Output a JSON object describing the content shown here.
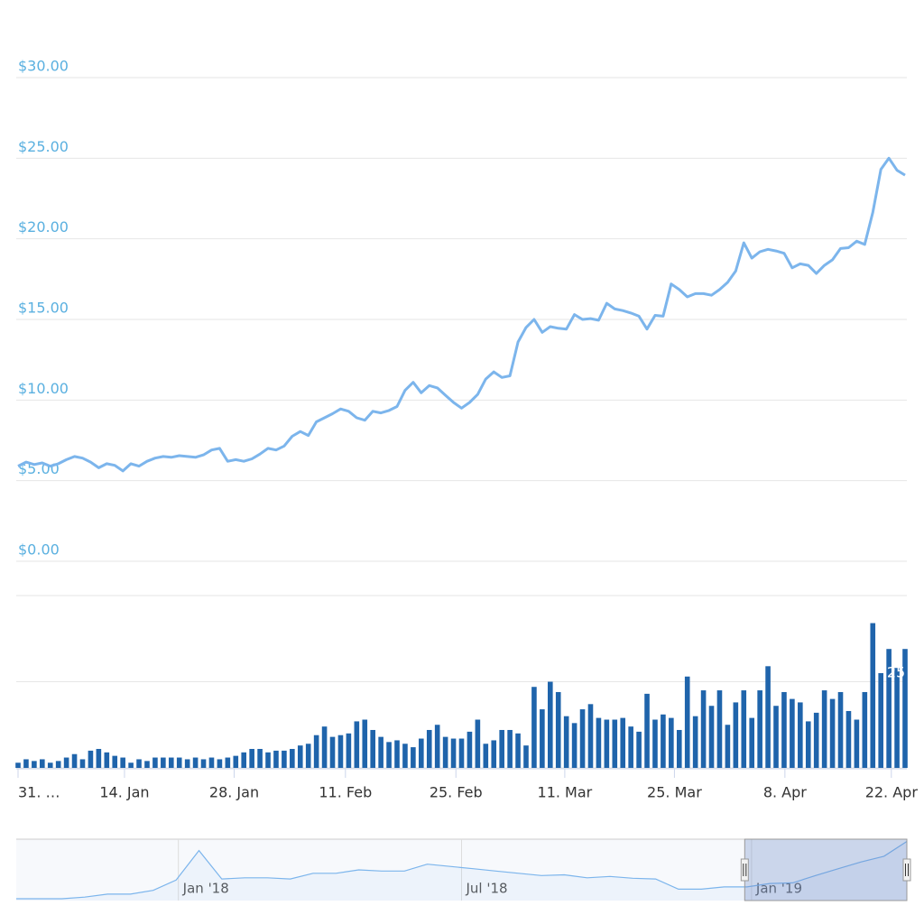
{
  "chart_data": {
    "type": "line",
    "series": [
      {
        "name": "Price",
        "color": "#7cb5ec",
        "values": [
          5.9,
          6.15,
          6.0,
          6.1,
          5.9,
          6.05,
          6.3,
          6.5,
          6.4,
          6.15,
          5.8,
          6.05,
          5.95,
          5.6,
          6.05,
          5.9,
          6.2,
          6.4,
          6.5,
          6.45,
          6.55,
          6.5,
          6.45,
          6.6,
          6.9,
          7.0,
          6.2,
          6.3,
          6.2,
          6.35,
          6.65,
          7.0,
          6.9,
          7.15,
          7.75,
          8.05,
          7.8,
          8.65,
          8.9,
          9.15,
          9.45,
          9.3,
          8.9,
          8.75,
          9.3,
          9.2,
          9.35,
          9.6,
          10.6,
          11.1,
          10.45,
          10.9,
          10.75,
          10.3,
          9.85,
          9.5,
          9.85,
          10.35,
          11.3,
          11.75,
          11.4,
          11.5,
          13.6,
          14.5,
          15.0,
          14.2,
          14.55,
          14.45,
          14.4,
          15.3,
          15.0,
          15.05,
          14.95,
          16.0,
          15.65,
          15.55,
          15.4,
          15.2,
          14.4,
          15.25,
          15.2,
          17.2,
          16.85,
          16.4,
          16.6,
          16.6,
          16.5,
          16.85,
          17.3,
          18.0,
          19.75,
          18.8,
          19.2,
          19.35,
          19.25,
          19.1,
          18.2,
          18.45,
          18.35,
          17.85,
          18.35,
          18.7,
          19.4,
          19.45,
          19.85,
          19.65,
          21.65,
          24.3,
          25.0,
          24.25,
          23.95
        ]
      }
    ],
    "ylim": [
      0,
      30
    ],
    "yticks": [
      {
        "value": 0,
        "label": "$0.00"
      },
      {
        "value": 5,
        "label": "$5.00"
      },
      {
        "value": 10,
        "label": "$10.00"
      },
      {
        "value": 15,
        "label": "$15.00"
      },
      {
        "value": 20,
        "label": "$20.00"
      },
      {
        "value": 25,
        "label": "$25.00"
      },
      {
        "value": 30,
        "label": "$30.00"
      }
    ],
    "grid": true,
    "volume": {
      "type": "bar",
      "color": "#1f64ab",
      "ylim": [
        0,
        100
      ],
      "yticks": [
        0,
        50,
        100
      ],
      "values": [
        3,
        5,
        4,
        5,
        3,
        4,
        6,
        8,
        5,
        10,
        11,
        9,
        7,
        6,
        3,
        5,
        4,
        6,
        6,
        6,
        6,
        5,
        6,
        5,
        6,
        5,
        6,
        7,
        9,
        11,
        11,
        9,
        10,
        10,
        11,
        13,
        14,
        19,
        24,
        18,
        19,
        20,
        27,
        28,
        22,
        18,
        15,
        16,
        14,
        12,
        17,
        22,
        25,
        18,
        17,
        17,
        21,
        28,
        14,
        16,
        22,
        22,
        20,
        13,
        47,
        34,
        50,
        44,
        30,
        26,
        34,
        37,
        29,
        28,
        28,
        29,
        24,
        21,
        43,
        28,
        31,
        29,
        22,
        53,
        30,
        45,
        36,
        45,
        25,
        38,
        45,
        29,
        45,
        59,
        36,
        44,
        40,
        38,
        27,
        32,
        45,
        40,
        44,
        33,
        28,
        44,
        84,
        55,
        69,
        58,
        69
      ]
    },
    "annotation": "25",
    "xlim": [
      0,
      110
    ],
    "xticks": [
      {
        "value": 0,
        "label": "31. …"
      },
      {
        "value": 13.2,
        "label": "14. Jan"
      },
      {
        "value": 26.8,
        "label": "28. Jan"
      },
      {
        "value": 40.6,
        "label": "11. Feb"
      },
      {
        "value": 54.3,
        "label": "25. Feb"
      },
      {
        "value": 67.8,
        "label": "11. Mar"
      },
      {
        "value": 81.4,
        "label": "25. Mar"
      },
      {
        "value": 95.1,
        "label": "8. Apr"
      },
      {
        "value": 108.3,
        "label": "22. Apr"
      }
    ],
    "navigator": {
      "color": "#7cb5ec",
      "ylim": [
        0,
        27
      ],
      "xlim": [
        0,
        39
      ],
      "values": [
        0.8,
        0.8,
        0.8,
        1.5,
        2.8,
        2.8,
        4.5,
        9,
        22,
        9.5,
        10,
        10,
        9.5,
        12,
        12,
        13.5,
        13,
        13,
        16,
        15,
        14,
        13,
        12,
        11,
        11.3,
        10,
        10.6,
        9.8,
        9.5,
        5,
        5,
        6,
        6,
        7.5,
        7.8,
        11,
        14,
        17,
        19.5,
        26
      ],
      "xticks": [
        {
          "value": 7.1,
          "label": "Jan '18"
        },
        {
          "value": 19.5,
          "label": "Jul '18"
        },
        {
          "value": 32.2,
          "label": "Jan '19"
        }
      ],
      "selection": [
        31.9,
        39
      ]
    }
  }
}
